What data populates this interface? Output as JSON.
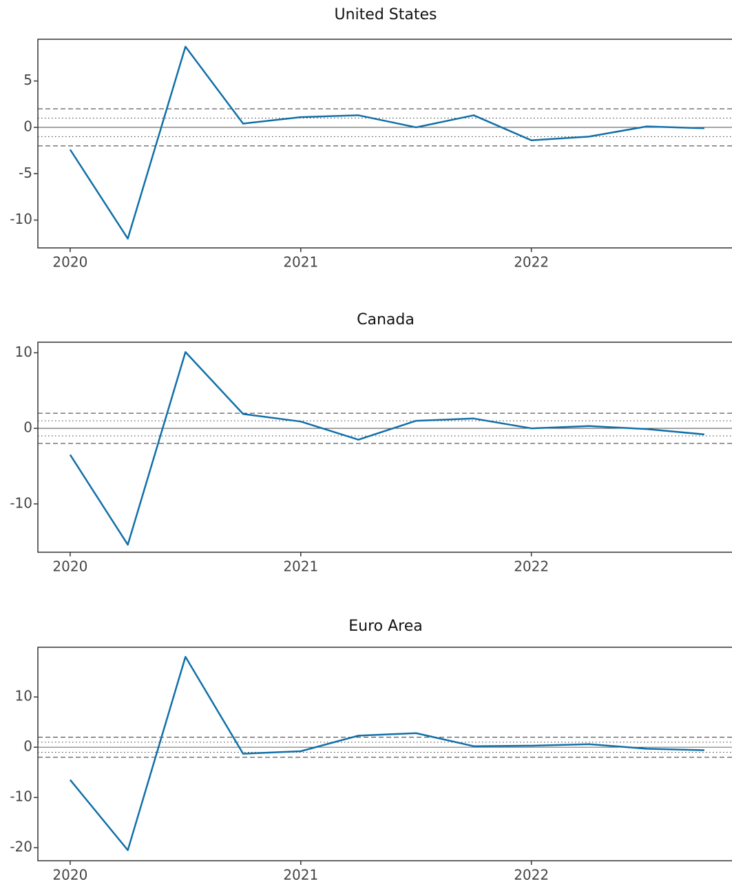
{
  "chart_data": [
    {
      "type": "line",
      "title": "United States",
      "x": [
        2020,
        2020.25,
        2020.5,
        2020.75,
        2021,
        2021.25,
        2021.5,
        2021.75,
        2022,
        2022.25,
        2022.5,
        2022.75
      ],
      "series": [
        {
          "color": "#0f6fa8",
          "values": [
            -2.4,
            -12.0,
            8.7,
            0.4,
            1.1,
            1.3,
            0.0,
            1.3,
            -1.4,
            -1.0,
            0.1,
            -0.1
          ]
        }
      ],
      "xlim": [
        2019.86,
        2022.87
      ],
      "xticks": [
        2020,
        2021,
        2022
      ],
      "ylim": [
        -13,
        9.5
      ],
      "yticks": [
        -10,
        -5,
        0,
        5
      ],
      "reference_lines": [
        {
          "value": 0,
          "style": "solid"
        },
        {
          "value": 1,
          "style": "dotted"
        },
        {
          "value": -1,
          "style": "dotted"
        },
        {
          "value": 2,
          "style": "dashed"
        },
        {
          "value": -2,
          "style": "dashed"
        }
      ]
    },
    {
      "type": "line",
      "title": "Canada",
      "x": [
        2020,
        2020.25,
        2020.5,
        2020.75,
        2021,
        2021.25,
        2021.5,
        2021.75,
        2022,
        2022.25,
        2022.5,
        2022.75
      ],
      "series": [
        {
          "color": "#0f6fa8",
          "values": [
            -3.5,
            -15.4,
            10.1,
            1.9,
            0.9,
            -1.5,
            1.0,
            1.3,
            0.0,
            0.3,
            -0.1,
            -0.8
          ]
        }
      ],
      "xlim": [
        2019.86,
        2022.87
      ],
      "xticks": [
        2020,
        2021,
        2022
      ],
      "ylim": [
        -16.4,
        11.4
      ],
      "yticks": [
        -10,
        0,
        10
      ],
      "reference_lines": [
        {
          "value": 0,
          "style": "solid"
        },
        {
          "value": 1,
          "style": "dotted"
        },
        {
          "value": -1,
          "style": "dotted"
        },
        {
          "value": 2,
          "style": "dashed"
        },
        {
          "value": -2,
          "style": "dashed"
        }
      ]
    },
    {
      "type": "line",
      "title": "Euro Area",
      "x": [
        2020,
        2020.25,
        2020.5,
        2020.75,
        2021,
        2021.25,
        2021.5,
        2021.75,
        2022,
        2022.25,
        2022.5,
        2022.75
      ],
      "series": [
        {
          "color": "#0f6fa8",
          "values": [
            -6.5,
            -20.5,
            18.0,
            -1.3,
            -0.8,
            2.3,
            2.8,
            0.2,
            0.3,
            0.6,
            -0.3,
            -0.6
          ]
        }
      ],
      "xlim": [
        2019.86,
        2022.87
      ],
      "xticks": [
        2020,
        2021,
        2022
      ],
      "ylim": [
        -22.6,
        19.9
      ],
      "yticks": [
        -20,
        -10,
        0,
        10
      ],
      "reference_lines": [
        {
          "value": 0,
          "style": "solid"
        },
        {
          "value": 1,
          "style": "dotted"
        },
        {
          "value": -1,
          "style": "dotted"
        },
        {
          "value": 2,
          "style": "dashed"
        },
        {
          "value": -2,
          "style": "dashed"
        }
      ]
    }
  ]
}
